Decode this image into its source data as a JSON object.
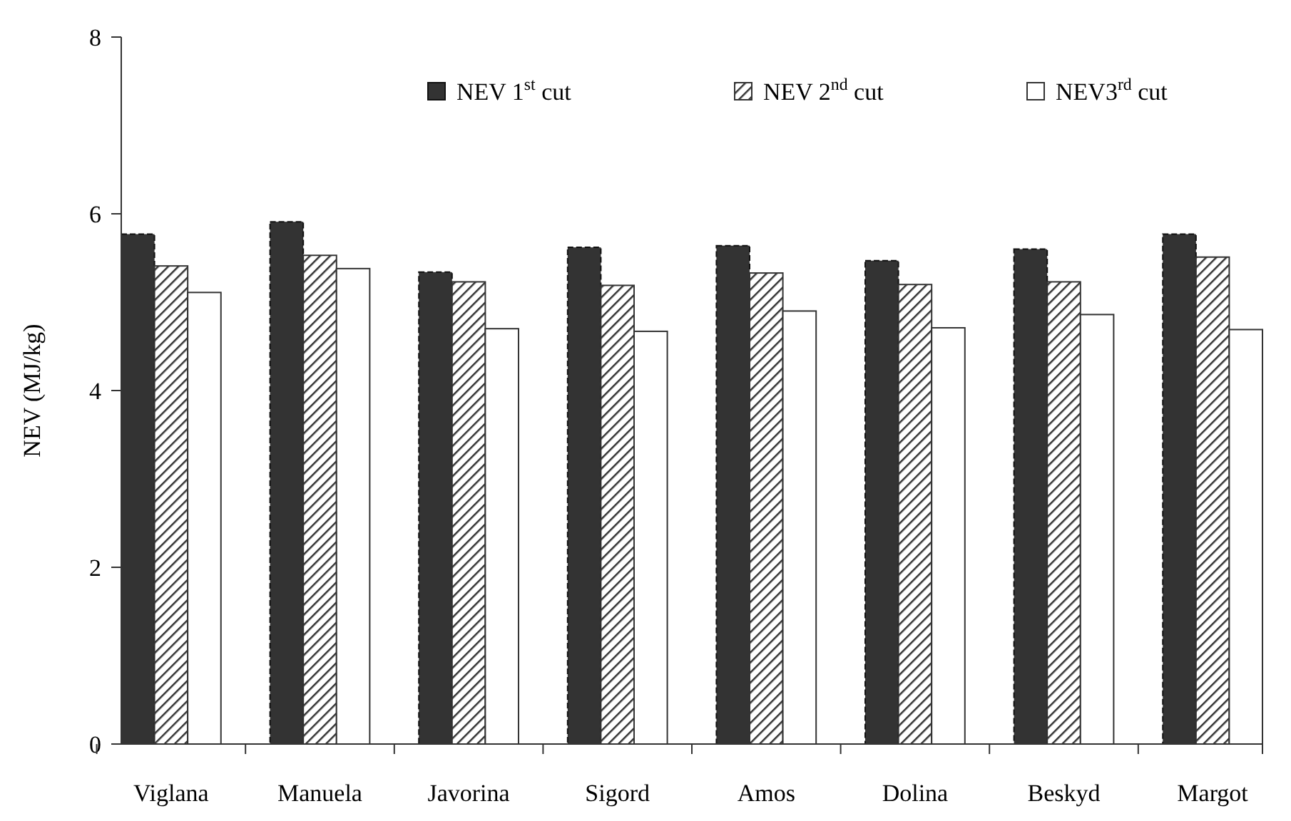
{
  "chart_data": {
    "type": "bar",
    "ylabel": "NEV (MJ/kg)",
    "categories": [
      "Viglana",
      "Manuela",
      "Javorina",
      "Sigord",
      "Amos",
      "Dolina",
      "Beskyd",
      "Margot"
    ],
    "series": [
      {
        "name": "NEV 1$^{st}$ cut",
        "color": "#333333",
        "values": [
          5.77,
          5.91,
          5.34,
          5.62,
          5.64,
          5.47,
          5.6,
          5.77
        ]
      },
      {
        "name": "NEV 2$^{nd}$ cut",
        "color": "#333333",
        "values": [
          5.41,
          5.53,
          5.23,
          5.19,
          5.33,
          5.2,
          5.23,
          5.51
        ]
      },
      {
        "name": "NEV3$^{rd}$ cut",
        "color": "#ffffff",
        "values": [
          5.11,
          5.38,
          4.7,
          4.67,
          4.9,
          4.71,
          4.86,
          4.69
        ]
      }
    ],
    "ylim": [
      0,
      8
    ],
    "yticks": [
      0,
      2,
      4,
      6,
      8
    ],
    "grid": false,
    "legend": "top"
  }
}
